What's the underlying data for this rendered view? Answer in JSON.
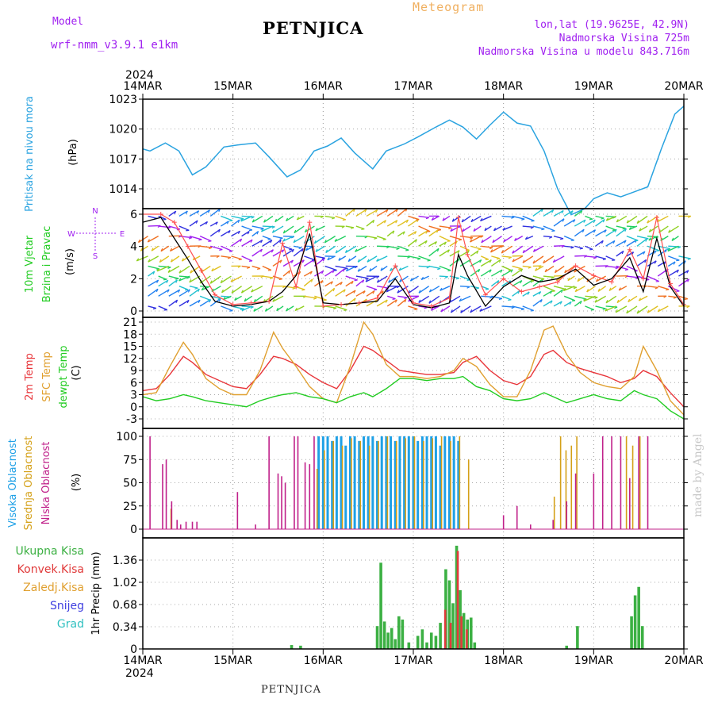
{
  "header": {
    "model_label": "Model",
    "model_name": "wrf-nmm_v3.9.1  e1km",
    "title": "PETNJICA",
    "meteogram": "Meteogram",
    "lonlat": "lon,lat (19.9625E, 42.9N)",
    "altitude": "Nadmorska Visina 725m",
    "model_altitude": "Nadmorska Visina u modelu 843.716m"
  },
  "footer": {
    "name": "PETNJICA",
    "credit": "made by Angel"
  },
  "x_axis": {
    "year": "2024",
    "labels": [
      "14MAR",
      "15MAR",
      "16MAR",
      "17MAR",
      "18MAR",
      "19MAR",
      "20MAR"
    ]
  },
  "colors": {
    "pressure": "#2aa3e0",
    "temp2m": "#e8353a",
    "sfctemp": "#e0a030",
    "dewpt": "#22cc22",
    "high_cloud": "#1ea0e6",
    "mid_cloud": "#d4a017",
    "low_cloud": "#c0208a",
    "total_precip": "#3cb043",
    "conv_precip": "#e03a3a",
    "snow": "#4040e0",
    "grad": "#30c0c0",
    "wind_speed": "#000000",
    "wind_gust": "#ff5050",
    "purple": "#a020f0"
  },
  "chart_data": [
    {
      "type": "line",
      "name": "pressure",
      "ylabel_lines": [
        "Pritisak na nivou mora",
        "(hPa)"
      ],
      "ylim": [
        1011,
        1023.5
      ],
      "yticks": [
        1014,
        1017,
        1020,
        1023
      ],
      "x_days": [
        0,
        0.08,
        0.25,
        0.4,
        0.55,
        0.7,
        0.9,
        1.05,
        1.25,
        1.4,
        1.6,
        1.75,
        1.9,
        2.05,
        2.2,
        2.35,
        2.55,
        2.7,
        2.9,
        3.05,
        3.25,
        3.4,
        3.55,
        3.7,
        3.85,
        4.0,
        4.15,
        4.3,
        4.45,
        4.6,
        4.75,
        4.9,
        5.0,
        5.15,
        5.3,
        5.45,
        5.6,
        5.75,
        5.9,
        6.0
      ],
      "series": [
        {
          "values": [
            1018,
            1017.8,
            1018.6,
            1017.8,
            1015.4,
            1016.2,
            1018.2,
            1018.4,
            1018.6,
            1017.2,
            1015.2,
            1015.9,
            1017.8,
            1018.3,
            1019.1,
            1017.6,
            1016.0,
            1017.8,
            1018.5,
            1019.2,
            1020.2,
            1020.9,
            1020.2,
            1019.0,
            1020.4,
            1021.7,
            1020.6,
            1020.3,
            1017.8,
            1014.0,
            1011.4,
            1012.0,
            1013.0,
            1013.6,
            1013.2,
            1013.7,
            1014.2,
            1018.0,
            1021.5,
            1022.3
          ]
        }
      ]
    },
    {
      "type": "line",
      "name": "wind",
      "ylabel_lines": [
        "10m Vjetar",
        "Brzina i Pravac",
        "(m/s)"
      ],
      "compass": [
        "N",
        "W",
        "E",
        "S"
      ],
      "ylim": [
        0,
        6.5
      ],
      "yticks": [
        0,
        2,
        4,
        6
      ],
      "x_days": [
        0,
        0.2,
        0.35,
        0.5,
        0.65,
        0.8,
        1.0,
        1.2,
        1.4,
        1.55,
        1.7,
        1.85,
        2.0,
        2.2,
        2.4,
        2.6,
        2.8,
        3.0,
        3.2,
        3.4,
        3.5,
        3.6,
        3.8,
        4.0,
        4.2,
        4.4,
        4.6,
        4.8,
        5.0,
        5.2,
        5.4,
        5.55,
        5.7,
        5.85,
        6.0
      ],
      "series": [
        {
          "name": "speed",
          "values": [
            5.5,
            5.8,
            4.5,
            3.2,
            1.8,
            0.6,
            0.3,
            0.4,
            0.6,
            1.2,
            2.2,
            4.8,
            0.5,
            0.4,
            0.5,
            0.6,
            2.0,
            0.4,
            0.2,
            0.5,
            3.5,
            2.2,
            0.3,
            1.5,
            2.2,
            1.8,
            2.0,
            2.6,
            1.6,
            2.0,
            3.3,
            1.2,
            4.5,
            1.5,
            0.3
          ]
        },
        {
          "name": "gust",
          "values": [
            6.0,
            6.0,
            5.5,
            4.0,
            2.5,
            1.0,
            0.4,
            0.5,
            0.6,
            4.2,
            1.5,
            5.5,
            0.3,
            0.4,
            0.5,
            0.8,
            2.8,
            0.5,
            0.3,
            0.8,
            5.8,
            3.5,
            1.0,
            2.0,
            1.2,
            1.5,
            1.8,
            2.8,
            2.2,
            1.8,
            3.8,
            2.0,
            5.8,
            1.7,
            0.4
          ]
        }
      ]
    },
    {
      "type": "line",
      "name": "temperature",
      "ylabel_lines": [
        "2m Temp",
        "SFC Temp",
        "dewpt Temp",
        "(C)"
      ],
      "ylim": [
        -4.5,
        21.5
      ],
      "yticks": [
        -3,
        0,
        3,
        6,
        9,
        12,
        15,
        18,
        21
      ],
      "x_days": [
        0,
        0.15,
        0.3,
        0.45,
        0.55,
        0.7,
        0.85,
        1.0,
        1.15,
        1.3,
        1.45,
        1.55,
        1.7,
        1.85,
        2.0,
        2.15,
        2.3,
        2.45,
        2.55,
        2.7,
        2.85,
        3.0,
        3.15,
        3.3,
        3.45,
        3.55,
        3.7,
        3.85,
        4.0,
        4.15,
        4.3,
        4.45,
        4.55,
        4.7,
        4.85,
        5.0,
        5.15,
        5.3,
        5.45,
        5.55,
        5.7,
        5.85,
        6.0
      ],
      "series": [
        {
          "name": "2m",
          "values": [
            4,
            4.5,
            8,
            12.5,
            11,
            8,
            6.5,
            5,
            4.5,
            8,
            12.5,
            12,
            10.5,
            8,
            6,
            4.5,
            9,
            15,
            14,
            11.5,
            9,
            8.5,
            8,
            8,
            8.5,
            11,
            12.5,
            9,
            6.5,
            5.5,
            7.5,
            13,
            14,
            11,
            9.5,
            8.5,
            7.5,
            6,
            7,
            9,
            7.5,
            3.5,
            0
          ]
        },
        {
          "name": "sfc",
          "values": [
            3,
            3.5,
            10,
            16,
            13,
            7,
            4.5,
            3,
            3,
            9,
            18.5,
            14.5,
            10,
            5,
            2,
            1,
            10,
            21,
            18,
            10.5,
            7.5,
            7.5,
            7,
            7.5,
            9,
            12,
            10,
            5.5,
            2.5,
            2.5,
            9,
            19,
            20,
            13,
            8.5,
            6,
            5,
            4.5,
            7.5,
            15,
            9,
            1.5,
            -2
          ]
        },
        {
          "name": "dewpt",
          "values": [
            2.5,
            1.5,
            2,
            3,
            2.5,
            1.5,
            1,
            0.5,
            0,
            1.5,
            2.5,
            3,
            3.5,
            2.5,
            2,
            1,
            2.5,
            3.5,
            2.5,
            4.5,
            7,
            7,
            6.5,
            7,
            7,
            7.5,
            5,
            4,
            2,
            1.5,
            2,
            3.5,
            2.5,
            1,
            2,
            3,
            2,
            1.5,
            4,
            3,
            2,
            -1,
            -3
          ]
        }
      ]
    },
    {
      "type": "bar",
      "name": "cloud",
      "ylabel_lines": [
        "Visoka Oblacnost",
        "Srednja Oblacnost",
        "Niska Oblacnost",
        "(%)"
      ],
      "ylim": [
        0,
        100
      ],
      "yticks": [
        0,
        25,
        50,
        75,
        100
      ],
      "series": [
        {
          "name": "Niska",
          "x_days": [
            0.08,
            0.22,
            0.26,
            0.32,
            0.38,
            0.42,
            0.48,
            0.55,
            0.6,
            1.05,
            1.25,
            1.4,
            1.5,
            1.54,
            1.58,
            1.68,
            1.72,
            1.8,
            1.85,
            1.9,
            4.0,
            4.15,
            4.3,
            4.55,
            4.7,
            4.8,
            5.0,
            5.1,
            5.2,
            5.3,
            5.4,
            5.5,
            5.6
          ],
          "values": [
            100,
            70,
            75,
            30,
            10,
            5,
            8,
            8,
            8,
            40,
            5,
            100,
            60,
            57,
            50,
            100,
            100,
            72,
            70,
            100,
            15,
            25,
            5,
            10,
            30,
            60,
            60,
            100,
            100,
            100,
            55,
            100,
            100
          ]
        },
        {
          "name": "Srednja",
          "x_days": [
            0.3,
            1.92,
            2.0,
            2.1,
            2.2,
            2.3,
            2.4,
            2.5,
            2.6,
            2.7,
            2.8,
            2.9,
            3.0,
            3.1,
            3.2,
            3.3,
            3.4,
            3.5,
            3.6,
            4.55,
            4.62,
            4.68,
            4.74,
            4.8,
            5.35,
            5.42,
            5.5
          ],
          "values": [
            22,
            65,
            85,
            95,
            90,
            98,
            95,
            90,
            95,
            100,
            95,
            98,
            100,
            95,
            98,
            100,
            95,
            100,
            75,
            35,
            100,
            85,
            90,
            100,
            100,
            90,
            100
          ]
        },
        {
          "name": "Visoka",
          "x_days": [
            1.95,
            2.0,
            2.05,
            2.1,
            2.15,
            2.2,
            2.25,
            2.3,
            2.35,
            2.4,
            2.45,
            2.5,
            2.55,
            2.6,
            2.65,
            2.7,
            2.75,
            2.8,
            2.85,
            2.9,
            2.95,
            3.0,
            3.05,
            3.1,
            3.15,
            3.2,
            3.25,
            3.3,
            3.35,
            3.4,
            3.45,
            3.5
          ],
          "values": [
            100,
            100,
            100,
            95,
            100,
            100,
            90,
            100,
            100,
            95,
            100,
            100,
            100,
            95,
            100,
            100,
            100,
            95,
            100,
            100,
            100,
            100,
            95,
            100,
            100,
            100,
            100,
            90,
            100,
            100,
            100,
            95
          ]
        }
      ]
    },
    {
      "type": "bar",
      "name": "precip",
      "ylabel_lines": [
        "1hr Precip (mm)"
      ],
      "legend": [
        "Ukupna Kisa",
        "Konvek.Kisa",
        "Zaledj.Kisa",
        "Snijeg",
        "Grad"
      ],
      "ylim": [
        0,
        1.6
      ],
      "yticks": [
        0.34,
        0.68,
        1.02,
        1.36
      ],
      "tick_labels": [
        "0",
        "0.34",
        "0.68",
        "1.02",
        "1.36"
      ],
      "series": [
        {
          "name": "Ukupna Kisa",
          "x_days": [
            1.65,
            1.75,
            2.6,
            2.64,
            2.68,
            2.72,
            2.76,
            2.8,
            2.84,
            2.88,
            2.95,
            3.05,
            3.1,
            3.15,
            3.2,
            3.25,
            3.3,
            3.36,
            3.4,
            3.44,
            3.48,
            3.52,
            3.56,
            3.6,
            3.64,
            3.68,
            4.7,
            4.82,
            5.42,
            5.46,
            5.5,
            5.54
          ],
          "values": [
            0.06,
            0.05,
            0.35,
            1.32,
            0.42,
            0.25,
            0.32,
            0.15,
            0.5,
            0.45,
            0.1,
            0.2,
            0.3,
            0.1,
            0.25,
            0.2,
            0.4,
            1.22,
            1.05,
            0.7,
            1.58,
            0.9,
            0.55,
            0.45,
            0.48,
            0.1,
            0.05,
            0.35,
            0.5,
            0.82,
            0.95,
            0.35
          ]
        },
        {
          "name": "Konvek.Kisa",
          "x_days": [
            3.34,
            3.4,
            3.48,
            3.52,
            3.58
          ],
          "values": [
            0.6,
            0.4,
            1.5,
            0.5,
            0.3
          ]
        }
      ]
    }
  ]
}
